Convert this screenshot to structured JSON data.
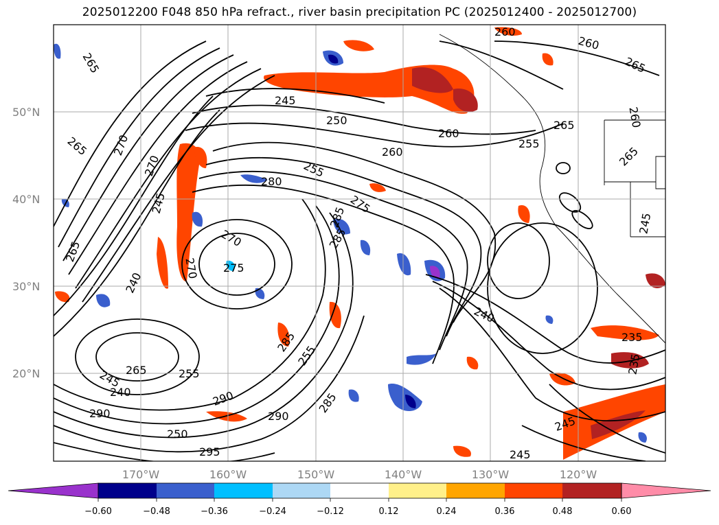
{
  "title": "2025012200 F048 850 hPa refract., river basin precipitation PC (2025012400 - 2025012700)",
  "map": {
    "lat_labels": [
      "50°N",
      "40°N",
      "30°N",
      "20°N"
    ],
    "lon_labels": [
      "170°W",
      "160°W",
      "150°W",
      "140°W",
      "130°W",
      "120°W"
    ],
    "contour_labels": [
      "265",
      "270",
      "270",
      "265",
      "265",
      "245",
      "240",
      "240",
      "245",
      "265",
      "290",
      "245",
      "270",
      "275",
      "270",
      "280",
      "285",
      "285",
      "275",
      "250",
      "255",
      "290",
      "285",
      "295",
      "260",
      "260",
      "255",
      "260",
      "250",
      "245",
      "240",
      "260",
      "260",
      "265",
      "265",
      "255",
      "265",
      "245",
      "235",
      "235",
      "245",
      "285",
      "255",
      "290"
    ]
  },
  "colorbar": {
    "ticks": [
      "−0.60",
      "−0.48",
      "−0.36",
      "−0.24",
      "−0.12",
      "0.12",
      "0.24",
      "0.36",
      "0.48",
      "0.60"
    ],
    "colors": [
      "#9932cc",
      "#00008b",
      "#3a5fcd",
      "#00bfff",
      "#add8f5",
      "#ffffff",
      "#fff08a",
      "#ffa500",
      "#ff4500",
      "#b22222",
      "#ff8ca8"
    ]
  }
}
